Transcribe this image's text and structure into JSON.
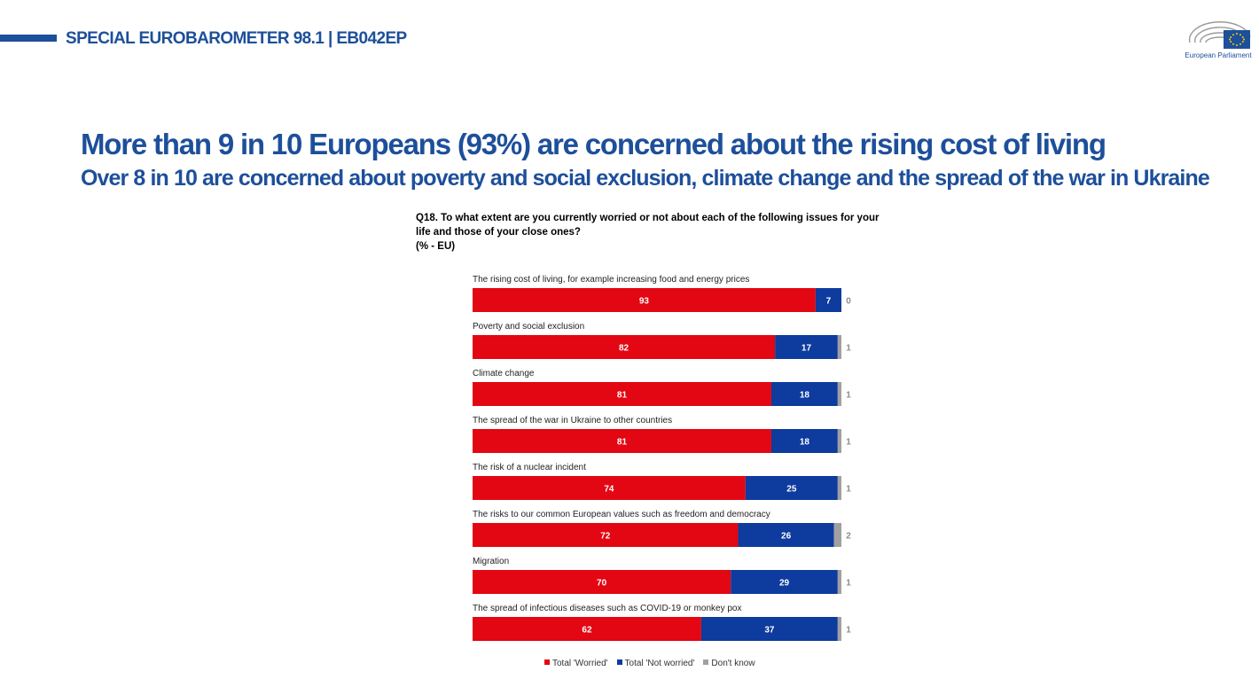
{
  "header": {
    "text": "SPECIAL EUROBAROMETER 98.1 | EB042EP",
    "logo_text": "European Parliament",
    "logo_icon": "european-parliament-logo",
    "accent_color": "#1d4f9a"
  },
  "title": "More than 9 in 10 Europeans (93%) are concerned about the rising cost of living",
  "subtitle": "Over 8 in 10 are concerned about poverty and social exclusion, climate change and the spread of the war in Ukraine",
  "question": {
    "line1": "Q18. To what extent are you currently worried or not about each of the following issues for your",
    "line2": "life and those of your close ones?",
    "line3": "(% - EU)"
  },
  "chart_data": {
    "type": "bar",
    "orientation": "horizontal-stacked",
    "categories": [
      "The rising cost of living, for example increasing food and energy prices",
      "Poverty and social exclusion",
      "Climate change",
      "The spread of the war in Ukraine to other countries",
      "The risk of a nuclear incident",
      "The risks to our common European values such as freedom and democracy",
      "Migration",
      "The spread of infectious diseases such as COVID-19 or monkey pox"
    ],
    "series": [
      {
        "name": "Total 'Worried'",
        "color": "#e30613",
        "values": [
          93,
          82,
          81,
          81,
          74,
          72,
          70,
          62
        ]
      },
      {
        "name": "Total 'Not worried'",
        "color": "#0d3b9e",
        "values": [
          7,
          17,
          18,
          18,
          25,
          26,
          29,
          37
        ]
      },
      {
        "name": "Don't know",
        "color": "#a0a0a0",
        "values": [
          0,
          1,
          1,
          1,
          1,
          2,
          1,
          1
        ]
      }
    ],
    "xlim": [
      0,
      100
    ],
    "legend_position": "bottom",
    "grid": false
  }
}
